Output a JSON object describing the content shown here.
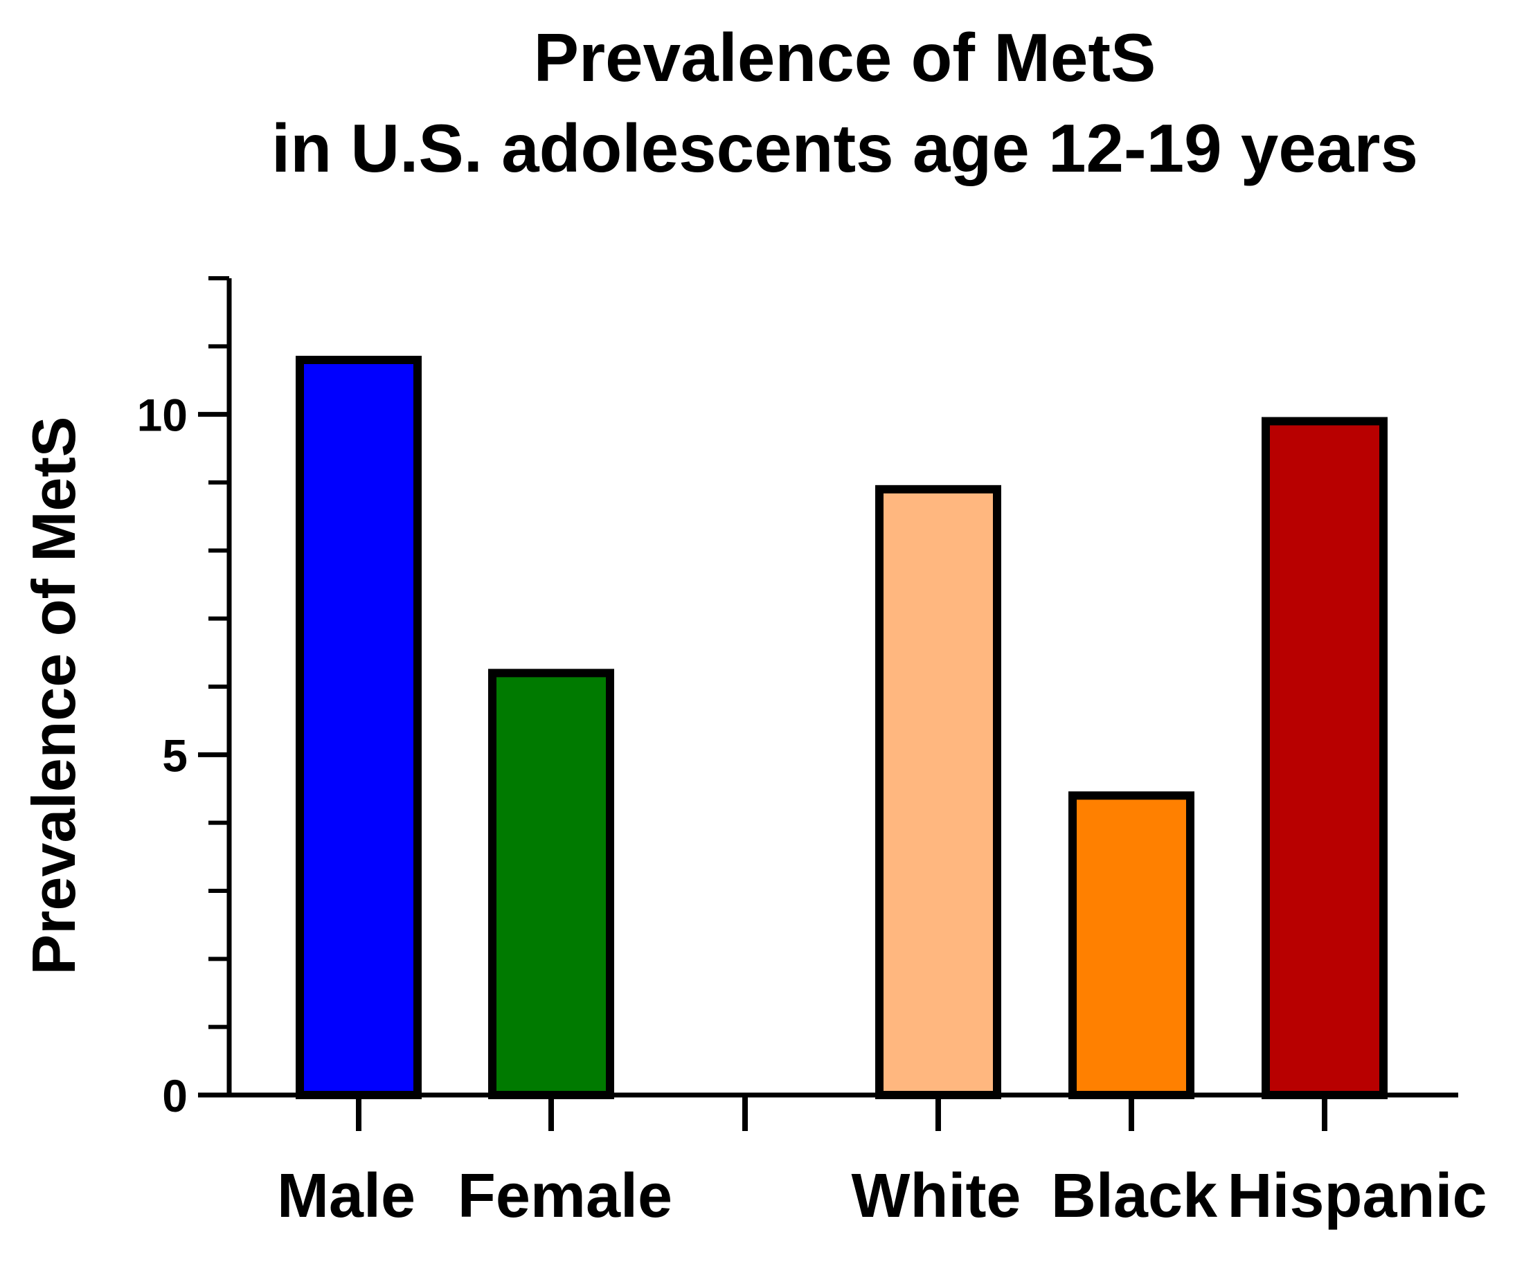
{
  "chart_data": {
    "type": "bar",
    "title_line1": "Prevalence of MetS",
    "title_line2": "in U.S. adolescents age 12-19 years",
    "xlabel": "",
    "ylabel": "Prevalence of MetS",
    "ylim": [
      0,
      12
    ],
    "major_ticks": [
      0,
      5,
      10
    ],
    "minor_ticks": [
      1,
      2,
      3,
      4,
      6,
      7,
      8,
      9,
      11,
      12
    ],
    "categories": [
      "Male",
      "Female",
      "",
      "White",
      "Black",
      "Hispanic"
    ],
    "values": [
      10.8,
      6.2,
      null,
      8.9,
      4.4,
      9.9
    ],
    "colors": [
      "#0000FF",
      "#007A00",
      "",
      "#FFB77F",
      "#FF8000",
      "#B80000"
    ],
    "grid": false,
    "legend": "none"
  }
}
